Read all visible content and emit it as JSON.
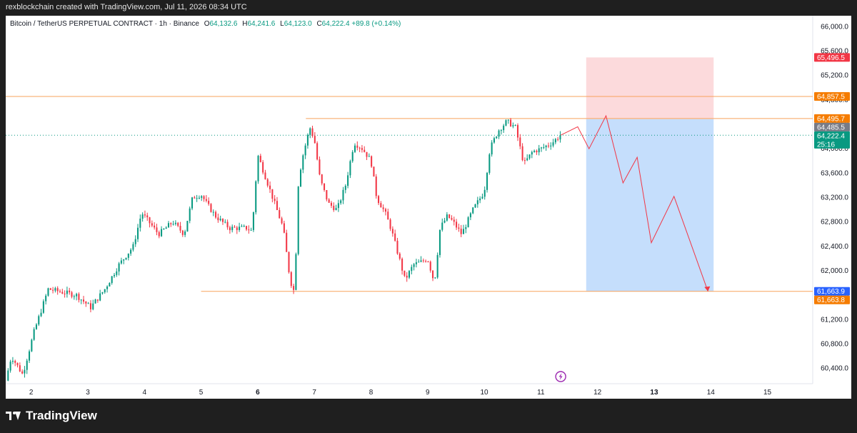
{
  "meta": {
    "created_by": "rexblockchain created with TradingView.com, Jul 11, 2026 08:34 UTC"
  },
  "header": {
    "symbol": "Bitcoin / TetherUS PERPETUAL CONTRACT · 1h · Binance",
    "o_label": "O",
    "o": "64,132.6",
    "h_label": "H",
    "h": "64,241.6",
    "l_label": "L",
    "l": "64,123.0",
    "c_label": "C",
    "c": "64,222.4",
    "change": "+89.8 (+0.14%)"
  },
  "footer": {
    "brand": "TradingView"
  },
  "colors": {
    "up": "#089981",
    "down": "#f23645",
    "profit": "#bbd8fb",
    "loss": "#fbd4d6",
    "level": "#f7a35c",
    "projection": "#f23645"
  },
  "chart_data": {
    "type": "candlestick",
    "timeframe": "1h",
    "y_axis": {
      "ticks": [
        66000,
        65600,
        65200,
        64800,
        64400,
        64000,
        63600,
        63200,
        62800,
        62400,
        62000,
        61600,
        61200,
        60800,
        60400
      ],
      "tick_labels": [
        "66,000.0",
        "65,600.0",
        "65,200.0",
        "64,800.0",
        "64,400.0",
        "64,000.0",
        "63,600.0",
        "63,200.0",
        "62,800.0",
        "62,400.0",
        "62,000.0",
        "61,600.0",
        "61,200.0",
        "60,800.0",
        "60,400.0"
      ],
      "range": [
        60150,
        66180
      ]
    },
    "x_axis": {
      "days": [
        2,
        3,
        4,
        5,
        6,
        7,
        8,
        9,
        10,
        11,
        12,
        13,
        14,
        15
      ],
      "labels": [
        "2",
        "3",
        "4",
        "5",
        "6",
        "7",
        "8",
        "9",
        "10",
        "11",
        "12",
        "13",
        "14",
        "15"
      ],
      "bold": [
        "6",
        "13"
      ],
      "range": [
        1.55,
        15.8
      ]
    },
    "last_close": 64222.4,
    "waypoints": [
      [
        1.55,
        60200
      ],
      [
        1.65,
        60600
      ],
      [
        1.85,
        60300
      ],
      [
        2.05,
        61000
      ],
      [
        2.3,
        61700
      ],
      [
        2.55,
        61650
      ],
      [
        2.8,
        61600
      ],
      [
        3.05,
        61400
      ],
      [
        3.3,
        61700
      ],
      [
        3.55,
        62100
      ],
      [
        3.8,
        62400
      ],
      [
        3.95,
        62950
      ],
      [
        4.25,
        62600
      ],
      [
        4.5,
        62800
      ],
      [
        4.7,
        62600
      ],
      [
        4.85,
        63200
      ],
      [
        5.0,
        63250
      ],
      [
        5.1,
        63100
      ],
      [
        5.25,
        62900
      ],
      [
        5.5,
        62700
      ],
      [
        5.8,
        62700
      ],
      [
        5.9,
        62650
      ],
      [
        6.0,
        63900
      ],
      [
        6.15,
        63500
      ],
      [
        6.3,
        63100
      ],
      [
        6.45,
        62700
      ],
      [
        6.55,
        62000
      ],
      [
        6.6,
        61750
      ],
      [
        6.65,
        61650
      ],
      [
        6.72,
        63500
      ],
      [
        6.8,
        63900
      ],
      [
        6.92,
        64350
      ],
      [
        7.0,
        64150
      ],
      [
        7.1,
        63500
      ],
      [
        7.25,
        63100
      ],
      [
        7.4,
        63000
      ],
      [
        7.55,
        63400
      ],
      [
        7.7,
        64100
      ],
      [
        7.85,
        64000
      ],
      [
        8.0,
        63800
      ],
      [
        8.1,
        63200
      ],
      [
        8.25,
        62950
      ],
      [
        8.35,
        62700
      ],
      [
        8.5,
        62200
      ],
      [
        8.6,
        61850
      ],
      [
        8.75,
        62100
      ],
      [
        8.9,
        62150
      ],
      [
        9.0,
        62200
      ],
      [
        9.12,
        61800
      ],
      [
        9.22,
        62700
      ],
      [
        9.35,
        62900
      ],
      [
        9.45,
        62800
      ],
      [
        9.6,
        62600
      ],
      [
        9.8,
        63000
      ],
      [
        10.0,
        63300
      ],
      [
        10.1,
        64000
      ],
      [
        10.25,
        64300
      ],
      [
        10.4,
        64450
      ],
      [
        10.55,
        64350
      ],
      [
        10.7,
        63750
      ],
      [
        10.85,
        63950
      ],
      [
        11.0,
        64000
      ],
      [
        11.2,
        64100
      ],
      [
        11.35,
        64222
      ]
    ],
    "levels": [
      {
        "name": "upper-resistance",
        "price": 64857.5,
        "x_from": 1.55
      },
      {
        "name": "range-high",
        "price": 64495.7,
        "x_from": 6.85
      },
      {
        "name": "range-low-support",
        "price": 61663.8,
        "x_from": 5.0
      },
      {
        "name": "current-price",
        "price": 64222.4,
        "x_from": 1.55,
        "style": "dotted"
      }
    ],
    "position": {
      "type": "short",
      "entry": 64485.5,
      "stop": 65496.5,
      "target": 61663.9,
      "x_start": 11.8,
      "x_end": 14.05
    },
    "projection": [
      [
        11.35,
        64222
      ],
      [
        11.65,
        64360
      ],
      [
        11.85,
        64000
      ],
      [
        12.15,
        64540
      ],
      [
        12.45,
        63440
      ],
      [
        12.7,
        63860
      ],
      [
        12.95,
        62460
      ],
      [
        13.35,
        63220
      ],
      [
        13.95,
        61663
      ]
    ],
    "price_tags": [
      {
        "label": "65,496.5",
        "price": 65496.5,
        "color": "#f23645"
      },
      {
        "label": "64,857.5",
        "price": 64857.5,
        "color": "#f57c00"
      },
      {
        "label": "64,495.7",
        "price": 64495.7,
        "color": "#f57c00"
      },
      {
        "label": "64,485.5",
        "price": 64485.5,
        "color": "#787b86"
      },
      {
        "label": "64,222.4",
        "price": 64222.4,
        "color": "#089981",
        "sub": "25:16"
      },
      {
        "label": "61,663.9",
        "price": 61663.9,
        "color": "#2962ff"
      },
      {
        "label": "61,663.8",
        "price": 61663.8,
        "color": "#f57c00"
      }
    ]
  }
}
